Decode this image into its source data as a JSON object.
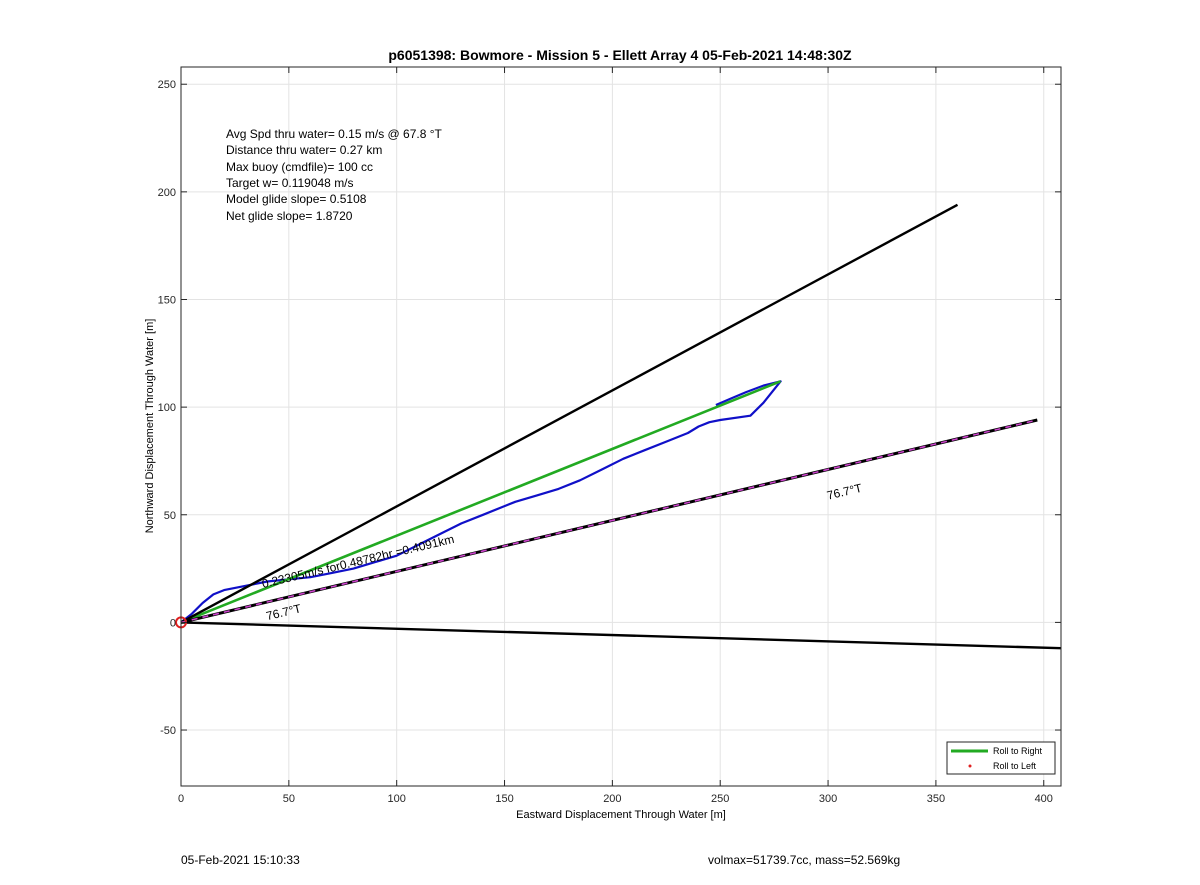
{
  "chart_data": {
    "type": "line",
    "title": "p6051398: Bowmore - Mission 5 - Ellett Array 4 05-Feb-2021 14:48:30Z",
    "xlabel": "Eastward Displacement Through Water [m]",
    "ylabel": "Northward Displacement Through Water [m]",
    "xlim": [
      0,
      408
    ],
    "ylim": [
      -76,
      258
    ],
    "xticks": [
      0,
      50,
      100,
      150,
      200,
      250,
      300,
      350,
      400
    ],
    "yticks": [
      -50,
      0,
      50,
      100,
      150,
      200,
      250
    ],
    "grid": true,
    "info_text": [
      "Avg Spd thru water=  0.15 m/s @  67.8 °T",
      "Distance thru water=  0.27 km",
      "Max buoy (cmdfile)= 100 cc",
      "Target w= 0.119048 m/s",
      "Model glide slope= 0.5108",
      "Net glide slope= 1.8720"
    ],
    "legend": {
      "placement": "bottom-right",
      "entries": [
        "Roll to Right",
        "Roll to Left"
      ]
    },
    "series": [
      {
        "name": "glider-track",
        "color": "#1010c8",
        "points": [
          [
            0,
            0
          ],
          [
            5,
            4
          ],
          [
            10,
            9
          ],
          [
            15,
            13
          ],
          [
            20,
            15
          ],
          [
            30,
            17
          ],
          [
            40,
            19
          ],
          [
            50,
            20
          ],
          [
            60,
            21
          ],
          [
            70,
            23
          ],
          [
            80,
            25
          ],
          [
            90,
            28
          ],
          [
            100,
            31
          ],
          [
            110,
            36
          ],
          [
            120,
            41
          ],
          [
            130,
            46
          ],
          [
            140,
            50
          ],
          [
            150,
            54
          ],
          [
            155,
            56
          ],
          [
            165,
            59
          ],
          [
            175,
            62
          ],
          [
            185,
            66
          ],
          [
            195,
            71
          ],
          [
            205,
            76
          ],
          [
            215,
            80
          ],
          [
            225,
            84
          ],
          [
            235,
            88
          ],
          [
            240,
            91
          ],
          [
            245,
            93
          ],
          [
            250,
            94
          ],
          [
            264,
            96
          ],
          [
            270,
            102
          ],
          [
            278,
            112
          ],
          [
            270,
            110
          ],
          [
            262,
            107
          ],
          [
            255,
            104
          ],
          [
            248,
            101
          ]
        ]
      },
      {
        "name": "roll-to-right",
        "color": "#22aa22",
        "points": [
          [
            0,
            0
          ],
          [
            278,
            112
          ]
        ]
      },
      {
        "name": "bound-upper",
        "color": "#000000",
        "points": [
          [
            0,
            0
          ],
          [
            360,
            194
          ]
        ]
      },
      {
        "name": "bound-lower",
        "color": "#000000",
        "points": [
          [
            0,
            0
          ],
          [
            408,
            -12
          ]
        ]
      },
      {
        "name": "heading-line",
        "color": "#000000",
        "dash_color": "#cc44cc",
        "points": [
          [
            0,
            0
          ],
          [
            397,
            94
          ]
        ]
      }
    ],
    "annotations": [
      {
        "text": "0.23305m/s for0.48782hr =0.4091km",
        "x": 38,
        "y": 16,
        "angle_deg": 13.3
      },
      {
        "text": "76.7°T",
        "x": 40,
        "y": 1,
        "angle_deg": 13.3
      },
      {
        "text": "76.7°T",
        "x": 300,
        "y": 57,
        "angle_deg": 13.3
      }
    ],
    "start_marker": {
      "x": 0,
      "y": 0,
      "color": "#e02020"
    }
  },
  "footer": {
    "left": "05-Feb-2021 15:10:33",
    "right": "volmax=51739.7cc, mass=52.569kg"
  }
}
